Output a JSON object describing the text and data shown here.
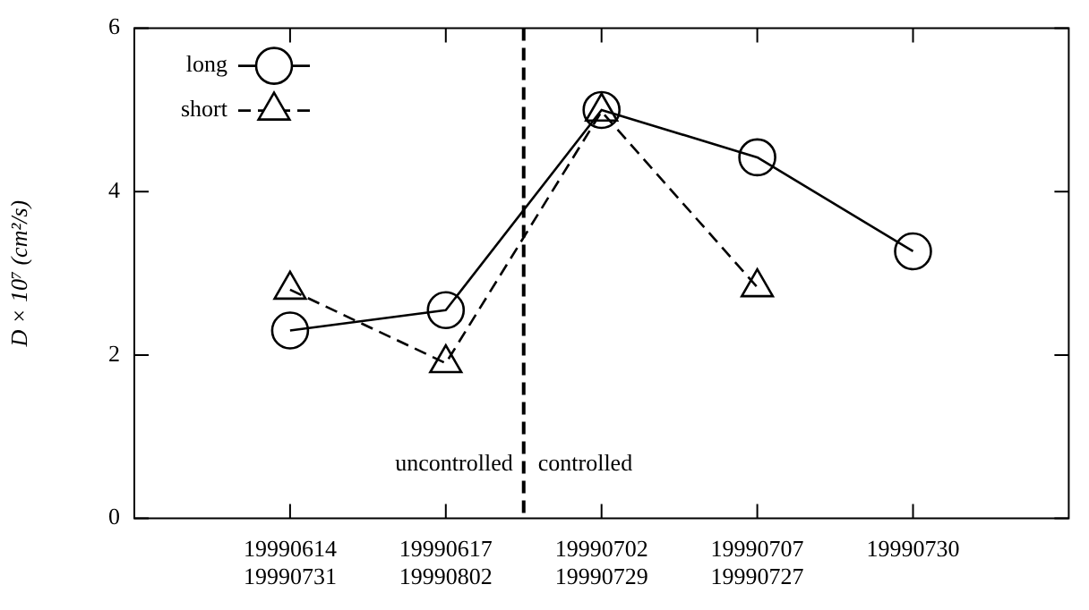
{
  "chart_data": {
    "type": "line",
    "ylabel": "D × 10⁷ (cm²/s)",
    "categories": [
      "19990614\n19990731",
      "19990617\n19990802",
      "19990702\n19990729",
      "19990707\n19990727",
      "19990730"
    ],
    "series": [
      {
        "name": "long",
        "color": "#000000",
        "marker": "circle",
        "line_style": "solid",
        "values": [
          2.3,
          2.55,
          5.0,
          4.42,
          3.27
        ]
      },
      {
        "name": "short",
        "color": "#000000",
        "marker": "triangle",
        "line_style": "dashed",
        "values": [
          2.8,
          1.9,
          4.98,
          2.83,
          null
        ]
      }
    ],
    "ylim": [
      0,
      6
    ],
    "yticks": [
      0,
      2,
      4,
      6
    ],
    "grid": false,
    "legend": "top left",
    "annotations": [
      "uncontrolled",
      "controlled"
    ]
  }
}
